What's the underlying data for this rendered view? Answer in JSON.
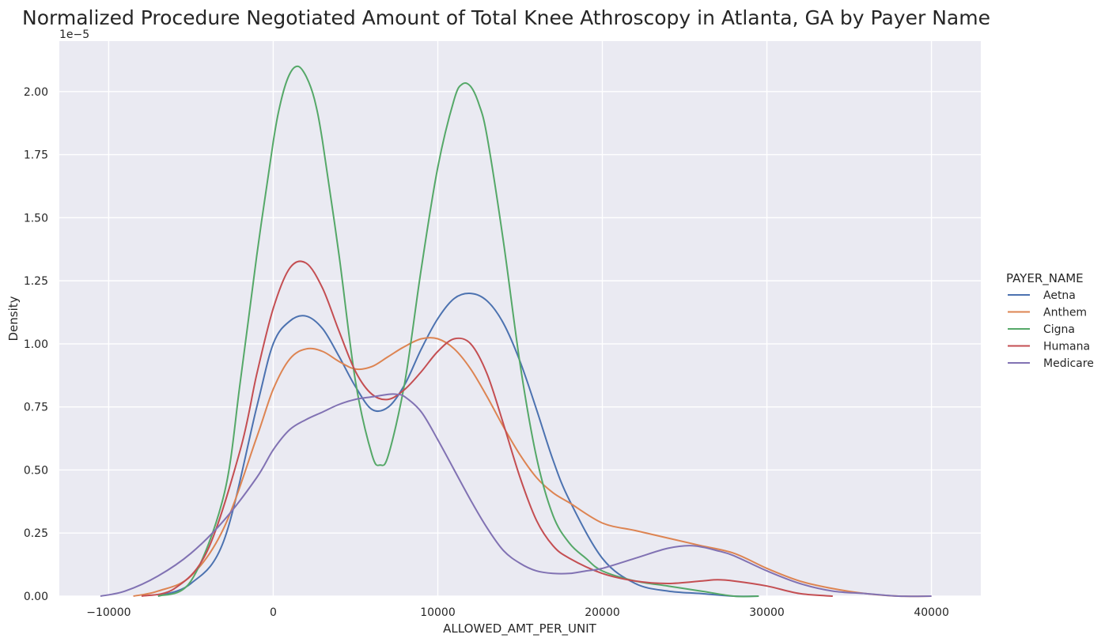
{
  "chart_data": {
    "type": "line",
    "title": "Normalized Procedure Negotiated Amount of Total Knee Athroscopy in Atlanta, GA by Payer Name",
    "xlabel": "ALLOWED_AMT_PER_UNIT",
    "ylabel": "Density",
    "y_offset_text": "1e−5",
    "xlim": [
      -13000,
      43000
    ],
    "ylim": [
      0,
      2.2
    ],
    "x_ticks": [
      -10000,
      0,
      10000,
      20000,
      30000,
      40000
    ],
    "x_tick_labels": [
      "−10000",
      "0",
      "10000",
      "20000",
      "30000",
      "40000"
    ],
    "y_ticks": [
      0,
      0.25,
      0.5,
      0.75,
      1.0,
      1.25,
      1.5,
      1.75,
      2.0
    ],
    "y_tick_labels": [
      "0.00",
      "0.25",
      "0.50",
      "0.75",
      "1.00",
      "1.25",
      "1.50",
      "1.75",
      "2.00"
    ],
    "grid": true,
    "legend": {
      "title": "PAYER_NAME",
      "placement": "right"
    },
    "series": [
      {
        "name": "Aetna",
        "color": "#4c72b0",
        "x": [
          -7000,
          -5000,
          -3000,
          -1000,
          0,
          1000,
          2000,
          3000,
          4000,
          5000,
          6000,
          7000,
          8000,
          9000,
          10000,
          11000,
          12000,
          13000,
          14000,
          15000,
          16000,
          17000,
          18000,
          20000,
          22000,
          24000,
          26000,
          28000,
          29500
        ],
        "y": [
          0.0,
          0.05,
          0.22,
          0.75,
          1.0,
          1.09,
          1.11,
          1.06,
          0.95,
          0.83,
          0.74,
          0.75,
          0.84,
          0.98,
          1.1,
          1.18,
          1.2,
          1.17,
          1.08,
          0.93,
          0.74,
          0.54,
          0.38,
          0.15,
          0.05,
          0.02,
          0.01,
          0.0,
          0.0
        ]
      },
      {
        "name": "Anthem",
        "color": "#dd8452",
        "x": [
          -8500,
          -7000,
          -5000,
          -3000,
          -1000,
          0,
          1000,
          2000,
          3000,
          4000,
          5000,
          6000,
          7000,
          8000,
          9000,
          10000,
          11000,
          12000,
          13000,
          14000,
          15000,
          16000,
          17000,
          18000,
          20000,
          22000,
          24000,
          26000,
          28000,
          30000,
          32000,
          34000,
          36000,
          38000,
          40000
        ],
        "y": [
          0.0,
          0.02,
          0.08,
          0.27,
          0.63,
          0.82,
          0.94,
          0.98,
          0.97,
          0.93,
          0.9,
          0.91,
          0.95,
          0.99,
          1.02,
          1.02,
          0.98,
          0.9,
          0.79,
          0.67,
          0.56,
          0.47,
          0.41,
          0.37,
          0.29,
          0.26,
          0.23,
          0.2,
          0.17,
          0.11,
          0.06,
          0.03,
          0.01,
          0.0,
          0.0
        ]
      },
      {
        "name": "Cigna",
        "color": "#55a868",
        "x": [
          -7000,
          -5000,
          -3000,
          -2000,
          -1000,
          0,
          500,
          1000,
          1500,
          2000,
          2500,
          3000,
          4000,
          5000,
          6000,
          6500,
          7000,
          8000,
          9000,
          10000,
          11000,
          11500,
          12000,
          12500,
          13000,
          14000,
          15000,
          16000,
          17000,
          18000,
          19000,
          20000,
          22000,
          24000,
          26000,
          28000,
          29500
        ],
        "y": [
          0.0,
          0.06,
          0.4,
          0.85,
          1.35,
          1.8,
          1.97,
          2.07,
          2.1,
          2.06,
          1.97,
          1.8,
          1.35,
          0.85,
          0.56,
          0.52,
          0.56,
          0.85,
          1.3,
          1.7,
          1.97,
          2.03,
          2.02,
          1.95,
          1.82,
          1.4,
          0.92,
          0.55,
          0.32,
          0.21,
          0.15,
          0.1,
          0.06,
          0.04,
          0.02,
          0.0,
          0.0
        ]
      },
      {
        "name": "Humana",
        "color": "#c44e52",
        "x": [
          -8000,
          -6000,
          -4000,
          -2000,
          -1000,
          0,
          1000,
          2000,
          3000,
          4000,
          5000,
          6000,
          7000,
          8000,
          9000,
          10000,
          11000,
          12000,
          13000,
          14000,
          15000,
          16000,
          17000,
          18000,
          20000,
          22000,
          24000,
          26000,
          27000,
          28000,
          30000,
          32000,
          34000
        ],
        "y": [
          0.0,
          0.03,
          0.18,
          0.58,
          0.88,
          1.14,
          1.3,
          1.32,
          1.22,
          1.05,
          0.89,
          0.8,
          0.78,
          0.82,
          0.89,
          0.97,
          1.02,
          1.0,
          0.88,
          0.68,
          0.47,
          0.3,
          0.2,
          0.15,
          0.09,
          0.06,
          0.05,
          0.06,
          0.065,
          0.06,
          0.04,
          0.01,
          0.0
        ]
      },
      {
        "name": "Medicare",
        "color": "#8172b3",
        "x": [
          -10500,
          -9000,
          -7000,
          -5000,
          -3000,
          -1000,
          0,
          1000,
          2000,
          3000,
          4000,
          5000,
          6000,
          7000,
          7500,
          8000,
          9000,
          10000,
          11000,
          12000,
          13000,
          14000,
          15000,
          16000,
          17000,
          18000,
          19000,
          20000,
          22000,
          24000,
          25500,
          27000,
          28000,
          30000,
          32000,
          34000,
          36000,
          38000,
          40000
        ],
        "y": [
          0.0,
          0.02,
          0.08,
          0.17,
          0.3,
          0.47,
          0.58,
          0.66,
          0.7,
          0.73,
          0.76,
          0.78,
          0.79,
          0.8,
          0.8,
          0.79,
          0.73,
          0.62,
          0.5,
          0.38,
          0.27,
          0.18,
          0.13,
          0.1,
          0.09,
          0.09,
          0.1,
          0.11,
          0.15,
          0.19,
          0.2,
          0.18,
          0.16,
          0.1,
          0.05,
          0.02,
          0.01,
          0.0,
          0.0
        ]
      }
    ]
  }
}
